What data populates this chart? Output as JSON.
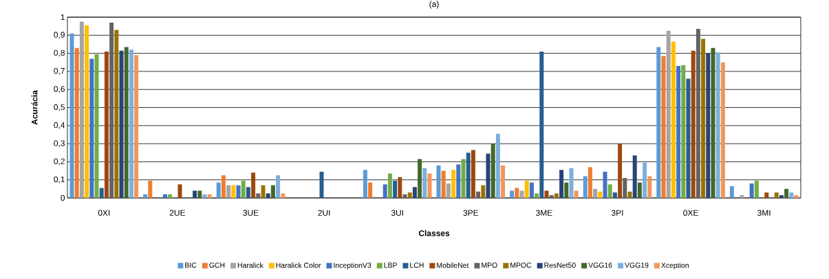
{
  "chart_data": {
    "type": "bar",
    "title": "(a)",
    "xlabel": "Classes",
    "ylabel": "Acurácia",
    "categories": [
      "0XI",
      "2UE",
      "3UE",
      "2UI",
      "3UI",
      "3PE",
      "3ME",
      "3PI",
      "0XE",
      "3MI"
    ],
    "series": [
      {
        "name": "BIC",
        "color": "#5b9bd5",
        "values": [
          0.91,
          0.02,
          0.085,
          0,
          0.155,
          0.18,
          0.04,
          0.12,
          0.835,
          0.065
        ]
      },
      {
        "name": "GCH",
        "color": "#ed7d31",
        "values": [
          0.83,
          0.095,
          0.125,
          0,
          0.085,
          0.15,
          0.055,
          0.17,
          0.785,
          0
        ]
      },
      {
        "name": "Haralick",
        "color": "#a5a5a5",
        "values": [
          0.975,
          0,
          0.07,
          0,
          0,
          0.08,
          0.04,
          0.05,
          0.925,
          0.015
        ]
      },
      {
        "name": "Haralick Color",
        "color": "#ffc000",
        "values": [
          0.955,
          0,
          0.07,
          0,
          0,
          0.155,
          0.095,
          0.035,
          0.865,
          0
        ]
      },
      {
        "name": "InceptionV3",
        "color": "#4472c4",
        "values": [
          0.77,
          0.02,
          0.07,
          0,
          0.075,
          0.185,
          0.085,
          0.145,
          0.73,
          0.08
        ]
      },
      {
        "name": "LBP",
        "color": "#70ad47",
        "values": [
          0.795,
          0.02,
          0.095,
          0,
          0.135,
          0.215,
          0.025,
          0.075,
          0.735,
          0.095
        ]
      },
      {
        "name": "LCH",
        "color": "#255e91",
        "values": [
          0.055,
          0,
          0.06,
          0.145,
          0.095,
          0.25,
          0.81,
          0.03,
          0.66,
          0
        ]
      },
      {
        "name": "MobileNet",
        "color": "#9e480e",
        "values": [
          0.81,
          0.075,
          0.14,
          0,
          0.115,
          0.265,
          0.04,
          0.3,
          0.815,
          0.03
        ]
      },
      {
        "name": "MPO",
        "color": "#636363",
        "values": [
          0.97,
          0,
          0.025,
          0,
          0.02,
          0.035,
          0.015,
          0.11,
          0.935,
          0
        ]
      },
      {
        "name": "MPOC",
        "color": "#997300",
        "values": [
          0.93,
          0,
          0.07,
          0,
          0.03,
          0.07,
          0.025,
          0.035,
          0.88,
          0.03
        ]
      },
      {
        "name": "ResNet50",
        "color": "#264478",
        "values": [
          0.815,
          0.04,
          0.025,
          0,
          0.06,
          0.245,
          0.155,
          0.235,
          0.8,
          0.015
        ]
      },
      {
        "name": "VGG16",
        "color": "#43682b",
        "values": [
          0.835,
          0.04,
          0.07,
          0,
          0.215,
          0.3,
          0.085,
          0.085,
          0.83,
          0.05
        ]
      },
      {
        "name": "VGG19",
        "color": "#7cafdd",
        "values": [
          0.82,
          0.02,
          0.125,
          0,
          0.165,
          0.355,
          0.165,
          0.195,
          0.805,
          0.03
        ]
      },
      {
        "name": "Xception",
        "color": "#f1975a",
        "values": [
          0.79,
          0.02,
          0.025,
          0,
          0.135,
          0.18,
          0.04,
          0.12,
          0.75,
          0.015
        ]
      }
    ],
    "ylim": [
      0,
      1
    ],
    "yticks": [
      0,
      {
        "value": 0.1,
        "label": "0,1"
      },
      {
        "value": 0.2,
        "label": "0,2"
      },
      {
        "value": 0.3,
        "label": "0,3"
      },
      {
        "value": 0.4,
        "label": "0,4"
      },
      {
        "value": 0.5,
        "label": "0,5"
      },
      {
        "value": 0.6,
        "label": "0,6"
      },
      {
        "value": 0.7,
        "label": "0,7"
      },
      {
        "value": 0.8,
        "label": "0,8"
      },
      {
        "value": 0.9,
        "label": "0,9"
      },
      1
    ],
    "grid": "y",
    "legend": "bottom"
  }
}
